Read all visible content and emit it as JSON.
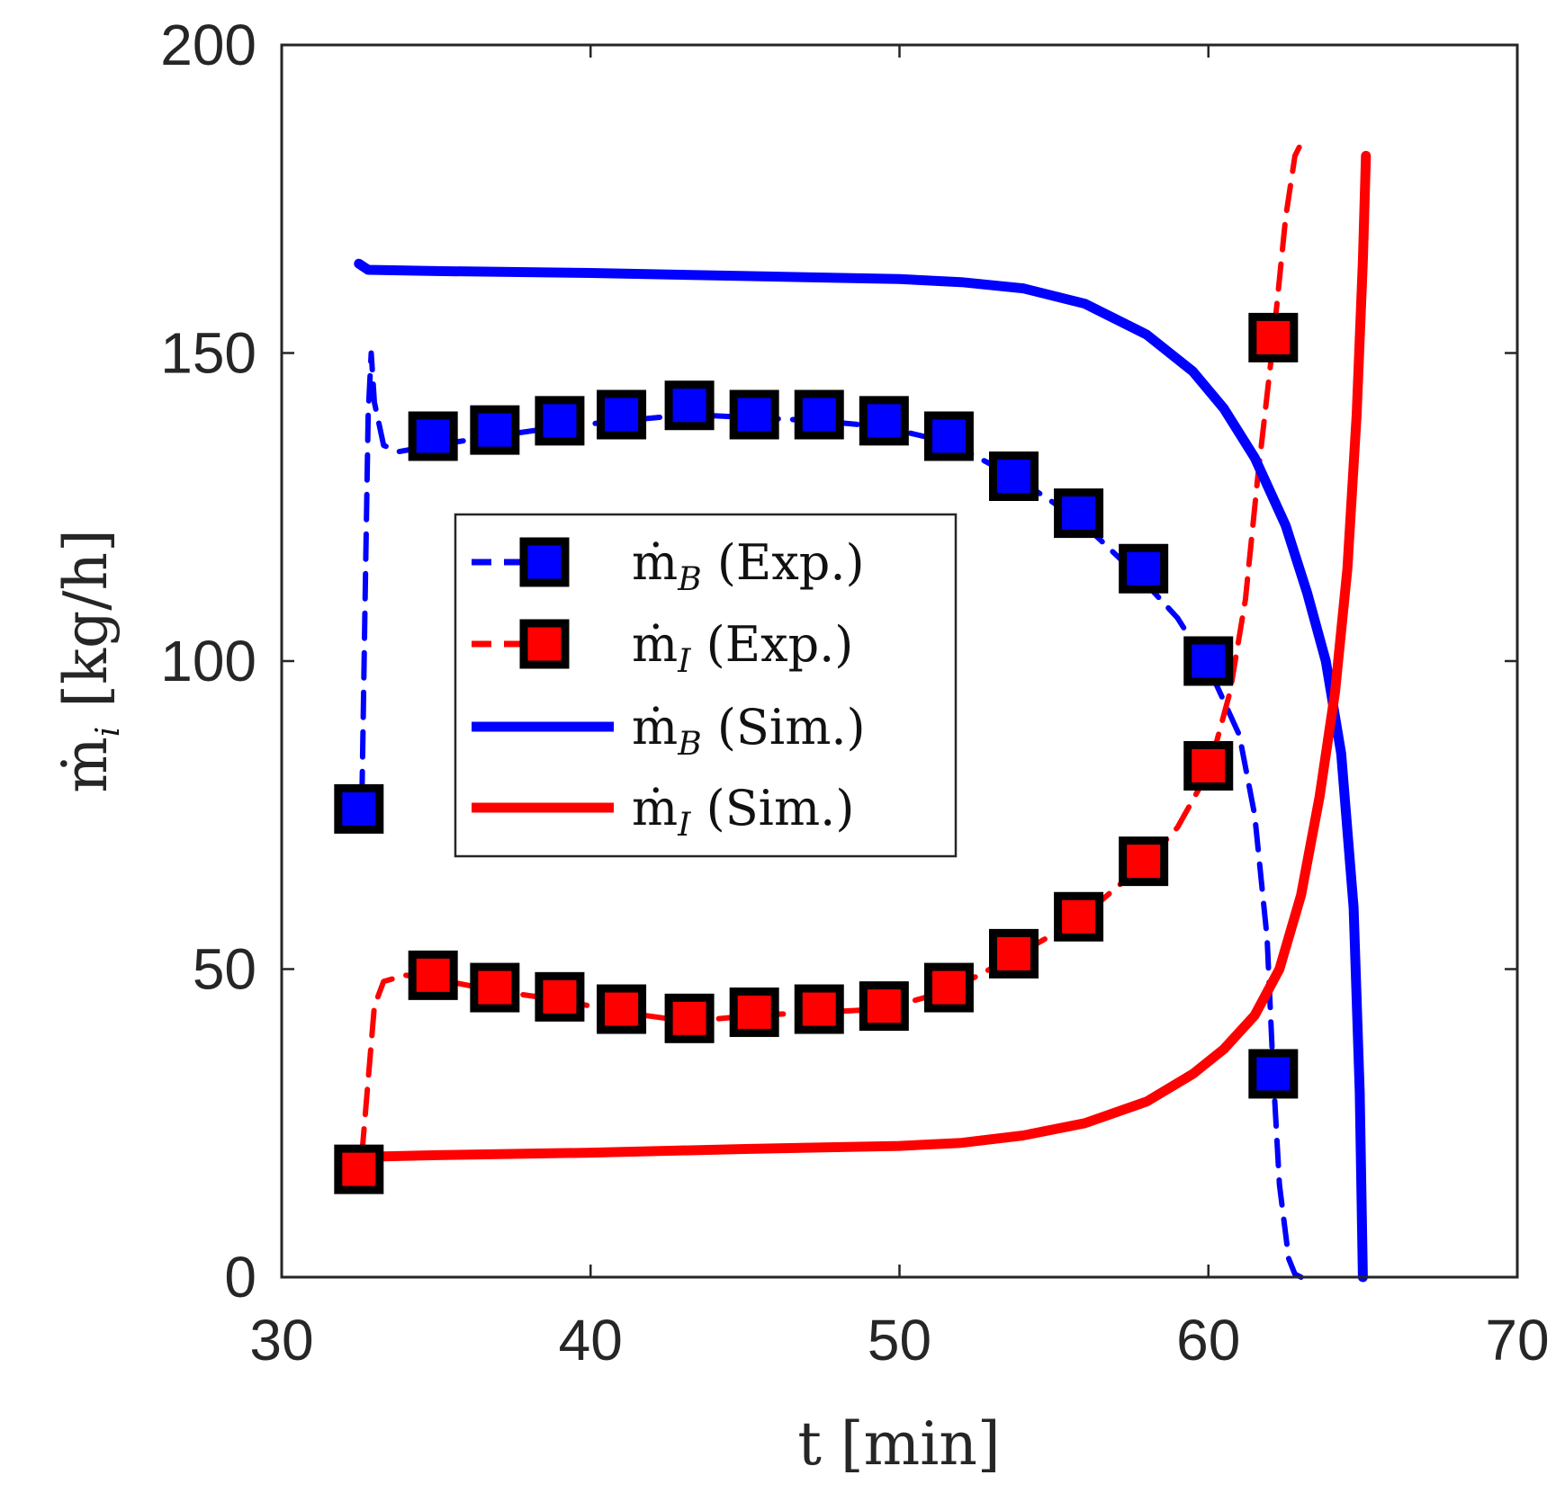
{
  "chart_data": {
    "type": "line",
    "title": "",
    "xlabel": "t [min]",
    "ylabel": {
      "base": "ṁ",
      "subscript": "i",
      "unit": "[kg/h]"
    },
    "xlim": [
      30,
      70
    ],
    "ylim": [
      0,
      200
    ],
    "xticks": [
      "30",
      "40",
      "50",
      "60",
      "70"
    ],
    "yticks": [
      "0",
      "50",
      "100",
      "150",
      "200"
    ],
    "xtick_values": [
      30,
      40,
      50,
      60,
      70
    ],
    "ytick_values": [
      0,
      50,
      100,
      150,
      200
    ],
    "legend_position": "center-left",
    "series": [
      {
        "name": "ṁB (Exp.)",
        "legend": {
          "symbol": "ṁ",
          "subscript": "B",
          "suffix": "(Exp.)"
        },
        "color": "#0000FF",
        "style": "dashed-marker",
        "points": [
          [
            32.5,
            76
          ],
          [
            34.9,
            136.5
          ],
          [
            36.9,
            137.5
          ],
          [
            39.0,
            139
          ],
          [
            41.0,
            140
          ],
          [
            43.2,
            141.5
          ],
          [
            45.3,
            140
          ],
          [
            47.4,
            140
          ],
          [
            49.5,
            139
          ],
          [
            51.6,
            136.5
          ],
          [
            53.7,
            130
          ],
          [
            55.8,
            124
          ],
          [
            57.9,
            115
          ],
          [
            60.0,
            100
          ],
          [
            62.1,
            33
          ]
        ]
      },
      {
        "name": "ṁI (Exp.)",
        "legend": {
          "symbol": "ṁ",
          "subscript": "I",
          "suffix": "(Exp.)"
        },
        "color": "#FF0000",
        "style": "dashed-marker",
        "points": [
          [
            32.5,
            17.5
          ],
          [
            34.9,
            49
          ],
          [
            36.9,
            47
          ],
          [
            39.0,
            45.5
          ],
          [
            41.0,
            43.5
          ],
          [
            43.2,
            42
          ],
          [
            45.3,
            43
          ],
          [
            47.4,
            43.5
          ],
          [
            49.5,
            44
          ],
          [
            51.6,
            47
          ],
          [
            53.7,
            52.5
          ],
          [
            55.8,
            58.5
          ],
          [
            57.9,
            67.5
          ],
          [
            60.0,
            83
          ],
          [
            62.1,
            152.5
          ]
        ]
      },
      {
        "name": "ṁB (Sim.)",
        "legend": {
          "symbol": "ṁ",
          "subscript": "B",
          "suffix": "(Sim.)"
        },
        "color": "#0000FF",
        "style": "solid",
        "points": [
          [
            32.5,
            164.5
          ],
          [
            32.8,
            163.5
          ],
          [
            35,
            163.3
          ],
          [
            40,
            163
          ],
          [
            45,
            162.5
          ],
          [
            50,
            162
          ],
          [
            52,
            161.5
          ],
          [
            54,
            160.5
          ],
          [
            56,
            158
          ],
          [
            58,
            153
          ],
          [
            59.5,
            147
          ],
          [
            60.5,
            141
          ],
          [
            61.5,
            133
          ],
          [
            62.5,
            122
          ],
          [
            63.2,
            111
          ],
          [
            63.8,
            100
          ],
          [
            64.3,
            85
          ],
          [
            64.7,
            60
          ],
          [
            64.9,
            30
          ],
          [
            65.0,
            0
          ]
        ]
      },
      {
        "name": "ṁI (Sim.)",
        "legend": {
          "symbol": "ṁ",
          "subscript": "I",
          "suffix": "(Sim.)"
        },
        "color": "#FF0000",
        "style": "solid",
        "points": [
          [
            32.5,
            19.5
          ],
          [
            35,
            19.8
          ],
          [
            40,
            20.2
          ],
          [
            45,
            20.8
          ],
          [
            50,
            21.3
          ],
          [
            52,
            21.8
          ],
          [
            54,
            23
          ],
          [
            56,
            25
          ],
          [
            58,
            28.5
          ],
          [
            59.5,
            33
          ],
          [
            60.5,
            37
          ],
          [
            61.5,
            42.5
          ],
          [
            62.3,
            50
          ],
          [
            63.0,
            62
          ],
          [
            63.6,
            78
          ],
          [
            64.1,
            95
          ],
          [
            64.5,
            115
          ],
          [
            64.8,
            140
          ],
          [
            65.0,
            165
          ],
          [
            65.1,
            182
          ]
        ]
      },
      {
        "name": "ṁB (Exp.) trace",
        "color": "#0000FF",
        "style": "dashed",
        "points": [
          [
            32.6,
            78
          ],
          [
            32.7,
            110
          ],
          [
            32.8,
            140
          ],
          [
            32.9,
            150
          ],
          [
            33.0,
            142
          ],
          [
            33.3,
            135
          ],
          [
            33.8,
            134
          ],
          [
            34.9,
            135
          ],
          [
            36.9,
            136.5
          ],
          [
            39.0,
            138
          ],
          [
            41.0,
            139
          ],
          [
            43.2,
            140
          ],
          [
            45.3,
            139.5
          ],
          [
            47.4,
            139
          ],
          [
            49.5,
            138
          ],
          [
            51.6,
            135.5
          ],
          [
            53.7,
            130
          ],
          [
            55.8,
            123
          ],
          [
            57.9,
            113
          ],
          [
            59.0,
            107
          ],
          [
            60.0,
            99
          ],
          [
            61.0,
            88
          ],
          [
            61.5,
            75
          ],
          [
            61.9,
            55
          ],
          [
            62.1,
            33
          ],
          [
            62.3,
            15
          ],
          [
            62.6,
            3
          ],
          [
            62.8,
            0.5
          ],
          [
            63.0,
            0
          ]
        ]
      },
      {
        "name": "ṁI (Exp.) trace",
        "color": "#FF0000",
        "style": "dashed",
        "points": [
          [
            32.6,
            20
          ],
          [
            32.8,
            32
          ],
          [
            33.0,
            44
          ],
          [
            33.3,
            48
          ],
          [
            34.0,
            49
          ],
          [
            34.9,
            48.5
          ],
          [
            36.9,
            46.5
          ],
          [
            39.0,
            45
          ],
          [
            41.0,
            43
          ],
          [
            43.2,
            41.5
          ],
          [
            45.3,
            42.5
          ],
          [
            47.4,
            43
          ],
          [
            49.5,
            43.5
          ],
          [
            51.6,
            46.5
          ],
          [
            53.7,
            52
          ],
          [
            55.8,
            58
          ],
          [
            57.9,
            67
          ],
          [
            59.0,
            73
          ],
          [
            60.0,
            82
          ],
          [
            60.7,
            95
          ],
          [
            61.2,
            110
          ],
          [
            61.6,
            130
          ],
          [
            62.1,
            152
          ],
          [
            62.5,
            172
          ],
          [
            62.8,
            182
          ],
          [
            63.0,
            184
          ]
        ]
      }
    ]
  }
}
